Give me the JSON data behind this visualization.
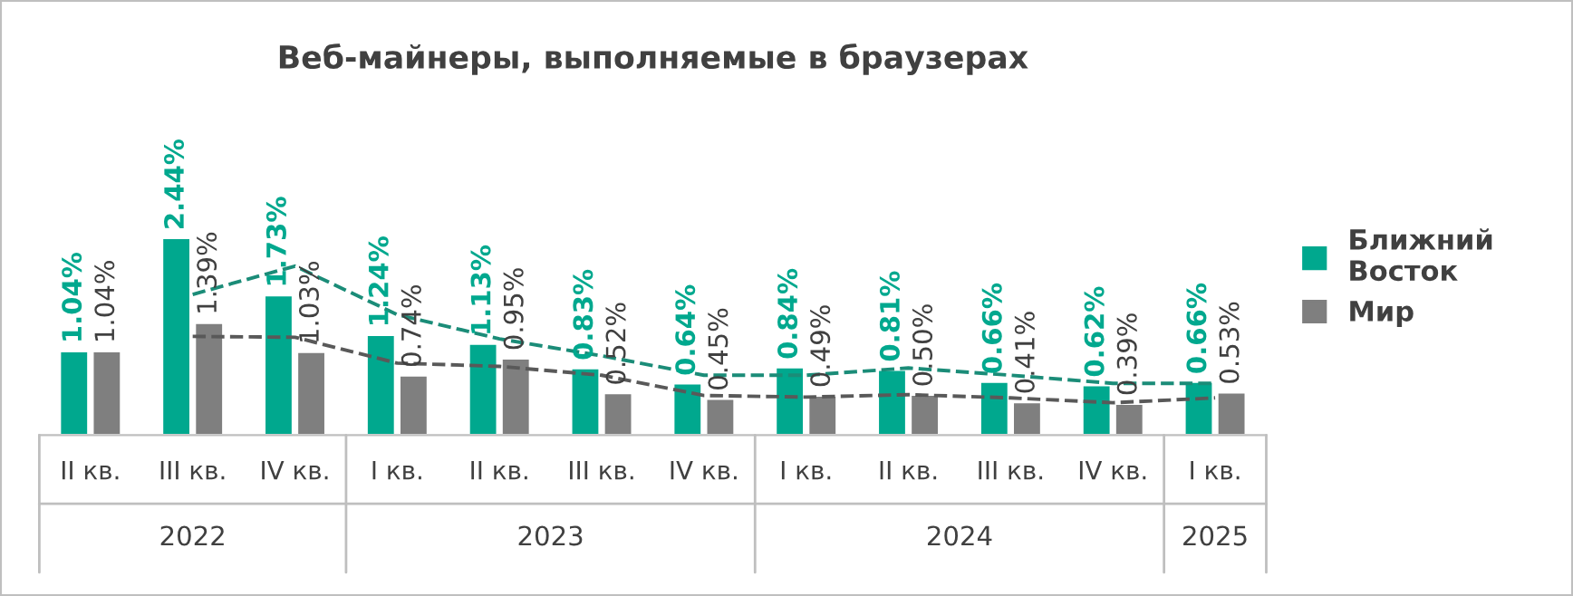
{
  "chart_data": {
    "type": "bar",
    "title": "Веб-майнеры, выполняемые в браузерах",
    "categories": [
      "II кв.",
      "III кв.",
      "IV кв.",
      "I кв.",
      "II кв.",
      "III кв.",
      "IV кв.",
      "I кв.",
      "II кв.",
      "III кв.",
      "IV кв.",
      "I кв."
    ],
    "series": [
      {
        "name": "Ближний Восток",
        "color": "#00a88e",
        "values": [
          1.04,
          2.44,
          1.73,
          1.24,
          1.13,
          0.83,
          0.64,
          0.84,
          0.81,
          0.66,
          0.62,
          0.66
        ],
        "value_labels": [
          "1.04%",
          "2.44%",
          "1.73%",
          "1.24%",
          "1.13%",
          "0.83%",
          "0.64%",
          "0.84%",
          "0.81%",
          "0.66%",
          "0.62%",
          "0.66%"
        ]
      },
      {
        "name": "Мир",
        "color": "#7f7f7f",
        "values": [
          1.04,
          1.39,
          1.03,
          0.74,
          0.95,
          0.52,
          0.45,
          0.49,
          0.5,
          0.41,
          0.39,
          0.53
        ],
        "value_labels": [
          "1.04%",
          "1.39%",
          "1.03%",
          "0.74%",
          "0.95%",
          "0.52%",
          "0.45%",
          "0.49%",
          "0.50%",
          "0.41%",
          "0.39%",
          "0.53%"
        ]
      },
      {
        "type": "line",
        "line_style": "dashed",
        "color": "#1b8c78",
        "values": [
          null,
          1.74,
          2.09,
          1.49,
          1.19,
          0.98,
          0.74,
          0.74,
          0.83,
          0.74,
          0.64,
          0.64
        ]
      },
      {
        "type": "line",
        "line_style": "dashed",
        "color": "#595959",
        "values": [
          null,
          1.22,
          1.21,
          0.89,
          0.85,
          0.74,
          0.49,
          0.47,
          0.5,
          0.46,
          0.4,
          0.46
        ]
      }
    ],
    "annotations": [
      "2022",
      "2023",
      "2024",
      "2025"
    ],
    "legend": "right",
    "grid": false,
    "tick_labels": "x"
  }
}
